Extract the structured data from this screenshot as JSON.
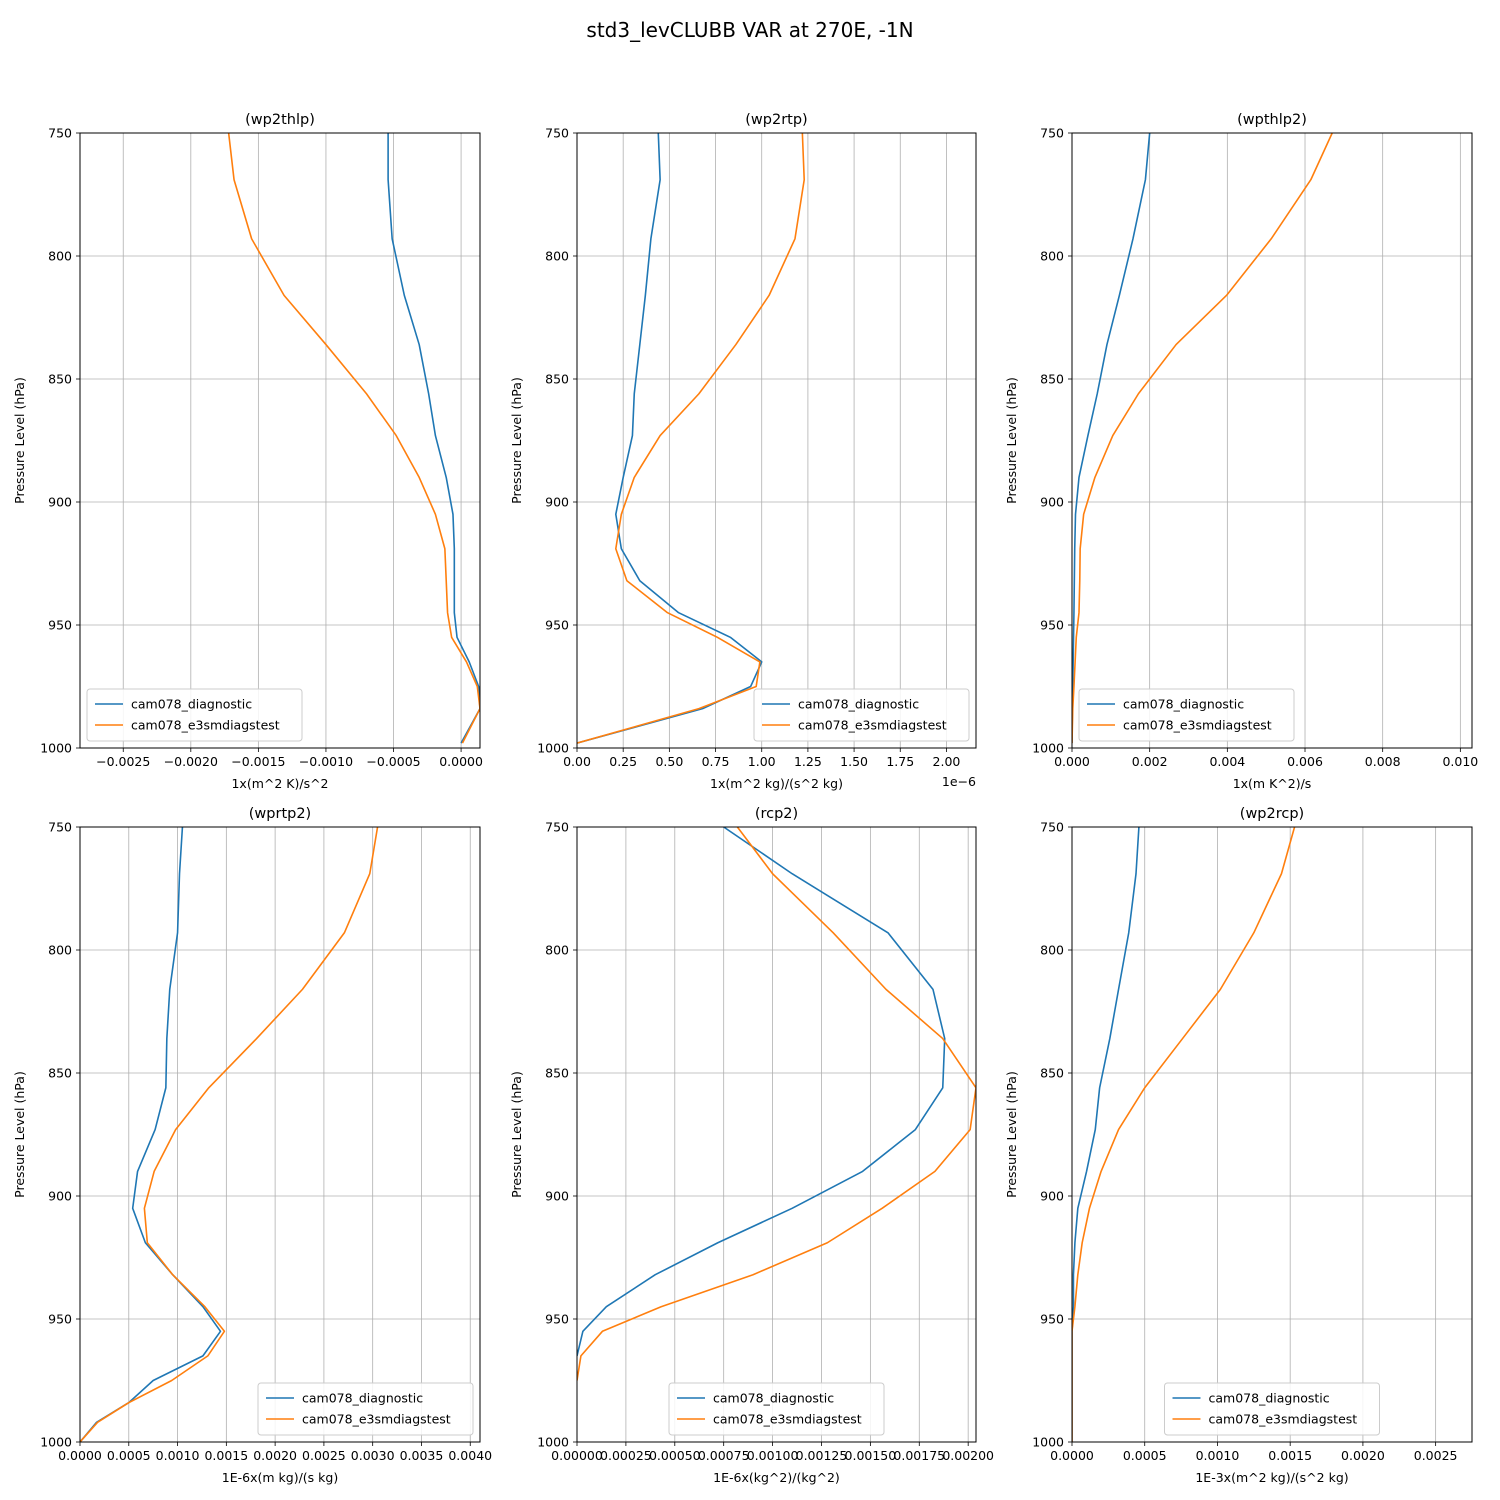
{
  "figure_title": "std3_levCLUBB VAR at 270E, -1N",
  "colors": {
    "series_1": "#1f77b4",
    "series_2": "#ff7f0e",
    "grid": "#b0b0b0"
  },
  "chart_data": [
    {
      "type": "line",
      "title": "(wp2thlp)",
      "xlabel": "1x(m^2 K)/s^2",
      "ylabel": "Pressure Level (hPa)",
      "xlim": [
        -0.00282,
        0.00014
      ],
      "ylim": [
        1000,
        750
      ],
      "xticks": [
        -0.0025,
        -0.002,
        -0.0015,
        -0.001,
        -0.0005,
        0.0
      ],
      "xtick_labels": [
        "−0.0025",
        "−0.0020",
        "−0.0015",
        "−0.0010",
        "−0.0005",
        "0.0000"
      ],
      "offset_text": "",
      "yticks": [
        750,
        800,
        850,
        900,
        950,
        1000
      ],
      "grid": true,
      "legend_position": "lower left",
      "series": [
        {
          "name": "cam078_diagnostic",
          "color": "#1f77b4",
          "points": [
            [
              -0.00054,
              750
            ],
            [
              -0.00054,
              769
            ],
            [
              -0.00051,
              793
            ],
            [
              -0.00042,
              816
            ],
            [
              -0.00031,
              836
            ],
            [
              -0.00024,
              856
            ],
            [
              -0.00019,
              873
            ],
            [
              -0.00011,
              890
            ],
            [
              -6e-05,
              905
            ],
            [
              -5e-05,
              919
            ],
            [
              -5e-05,
              932
            ],
            [
              -5e-05,
              945
            ],
            [
              -3e-05,
              955
            ],
            [
              6e-05,
              965
            ],
            [
              0.00013,
              975
            ],
            [
              0.00014,
              984
            ],
            [
              0.0,
              998
            ]
          ]
        },
        {
          "name": "cam078_e3smdiagstest",
          "color": "#ff7f0e",
          "points": [
            [
              -0.00172,
              750
            ],
            [
              -0.00168,
              769
            ],
            [
              -0.00155,
              793
            ],
            [
              -0.00131,
              816
            ],
            [
              -0.001,
              836
            ],
            [
              -0.0007,
              856
            ],
            [
              -0.00048,
              873
            ],
            [
              -0.00031,
              890
            ],
            [
              -0.00019,
              905
            ],
            [
              -0.00012,
              919
            ],
            [
              -0.00011,
              932
            ],
            [
              -0.0001,
              945
            ],
            [
              -7e-05,
              955
            ],
            [
              4e-05,
              965
            ],
            [
              0.00012,
              975
            ],
            [
              0.00014,
              984
            ],
            [
              1e-05,
              998
            ]
          ]
        }
      ]
    },
    {
      "type": "line",
      "title": "(wp2rtp)",
      "xlabel": "1x(m^2 kg)/(s^2 kg)",
      "ylabel": "Pressure Level (hPa)",
      "xlim": [
        0.0,
        2.16
      ],
      "ylim": [
        1000,
        750
      ],
      "xticks": [
        0.0,
        0.25,
        0.5,
        0.75,
        1.0,
        1.25,
        1.5,
        1.75,
        2.0
      ],
      "xtick_labels": [
        "0.00",
        "0.25",
        "0.50",
        "0.75",
        "1.00",
        "1.25",
        "1.50",
        "1.75",
        "2.00"
      ],
      "offset_text": "1e−6",
      "yticks": [
        750,
        800,
        850,
        900,
        950,
        1000
      ],
      "grid": true,
      "legend_position": "lower right",
      "series": [
        {
          "name": "cam078_diagnostic",
          "color": "#1f77b4",
          "points": [
            [
              0.44,
              750
            ],
            [
              0.45,
              769
            ],
            [
              0.4,
              793
            ],
            [
              0.37,
              816
            ],
            [
              0.34,
              836
            ],
            [
              0.31,
              856
            ],
            [
              0.3,
              873
            ],
            [
              0.25,
              890
            ],
            [
              0.21,
              905
            ],
            [
              0.24,
              919
            ],
            [
              0.34,
              932
            ],
            [
              0.55,
              945
            ],
            [
              0.83,
              955
            ],
            [
              1.0,
              965
            ],
            [
              0.94,
              975
            ],
            [
              0.68,
              984
            ],
            [
              0.0,
              998
            ]
          ]
        },
        {
          "name": "cam078_e3smdiagstest",
          "color": "#ff7f0e",
          "points": [
            [
              1.22,
              750
            ],
            [
              1.23,
              769
            ],
            [
              1.18,
              793
            ],
            [
              1.04,
              816
            ],
            [
              0.86,
              836
            ],
            [
              0.66,
              856
            ],
            [
              0.45,
              873
            ],
            [
              0.31,
              890
            ],
            [
              0.24,
              905
            ],
            [
              0.21,
              919
            ],
            [
              0.27,
              932
            ],
            [
              0.49,
              945
            ],
            [
              0.76,
              955
            ],
            [
              0.99,
              965
            ],
            [
              0.97,
              975
            ],
            [
              0.66,
              984
            ],
            [
              0.0,
              998
            ]
          ]
        }
      ]
    },
    {
      "type": "line",
      "title": "(wpthlp2)",
      "xlabel": "1x(m K^2)/s",
      "ylabel": "Pressure Level (hPa)",
      "xlim": [
        0.0,
        0.0103
      ],
      "ylim": [
        1000,
        750
      ],
      "xticks": [
        0.0,
        0.002,
        0.004,
        0.006,
        0.008,
        0.01
      ],
      "xtick_labels": [
        "0.000",
        "0.002",
        "0.004",
        "0.006",
        "0.008",
        "0.010"
      ],
      "offset_text": "",
      "yticks": [
        750,
        800,
        850,
        900,
        950,
        1000
      ],
      "grid": true,
      "legend_position": "lower left",
      "series": [
        {
          "name": "cam078_diagnostic",
          "color": "#1f77b4",
          "points": [
            [
              0.002,
              750
            ],
            [
              0.00189,
              769
            ],
            [
              0.00157,
              793
            ],
            [
              0.00122,
              816
            ],
            [
              0.0009,
              836
            ],
            [
              0.00065,
              856
            ],
            [
              0.00041,
              873
            ],
            [
              0.00018,
              890
            ],
            [
              9e-05,
              905
            ],
            [
              7e-05,
              919
            ],
            [
              6e-05,
              932
            ],
            [
              5e-05,
              945
            ],
            [
              4e-05,
              955
            ],
            [
              3e-05,
              965
            ],
            [
              2e-05,
              975
            ],
            [
              1e-05,
              984
            ],
            [
              0.0,
              998
            ]
          ]
        },
        {
          "name": "cam078_e3smdiagstest",
          "color": "#ff7f0e",
          "points": [
            [
              0.0067,
              750
            ],
            [
              0.00615,
              769
            ],
            [
              0.00513,
              793
            ],
            [
              0.00398,
              816
            ],
            [
              0.00268,
              836
            ],
            [
              0.00171,
              856
            ],
            [
              0.00105,
              873
            ],
            [
              0.00059,
              890
            ],
            [
              0.0003,
              905
            ],
            [
              0.00021,
              919
            ],
            [
              0.0002,
              932
            ],
            [
              0.00018,
              945
            ],
            [
              0.00011,
              955
            ],
            [
              8e-05,
              965
            ],
            [
              5e-05,
              975
            ],
            [
              2e-05,
              984
            ],
            [
              0.0,
              998
            ]
          ]
        }
      ]
    },
    {
      "type": "line",
      "title": "(wprtp2)",
      "xlabel": "1E-6x(m kg)/(s kg)",
      "ylabel": "Pressure Level (hPa)",
      "xlim": [
        0.0,
        0.0041
      ],
      "ylim": [
        1000,
        750
      ],
      "xticks": [
        0.0,
        0.0005,
        0.001,
        0.0015,
        0.002,
        0.0025,
        0.003,
        0.0035,
        0.004
      ],
      "xtick_labels": [
        "0.0000",
        "0.0005",
        "0.0010",
        "0.0015",
        "0.0020",
        "0.0025",
        "0.0030",
        "0.0035",
        "0.0040"
      ],
      "offset_text": "",
      "yticks": [
        750,
        800,
        850,
        900,
        950,
        1000
      ],
      "grid": true,
      "legend_position": "lower right",
      "series": [
        {
          "name": "cam078_diagnostic",
          "color": "#1f77b4",
          "points": [
            [
              0.00105,
              750
            ],
            [
              0.00102,
              769
            ],
            [
              0.001,
              793
            ],
            [
              0.00092,
              816
            ],
            [
              0.00089,
              836
            ],
            [
              0.00088,
              856
            ],
            [
              0.00077,
              873
            ],
            [
              0.00059,
              890
            ],
            [
              0.00054,
              905
            ],
            [
              0.00067,
              919
            ],
            [
              0.00095,
              932
            ],
            [
              0.00126,
              945
            ],
            [
              0.00144,
              955
            ],
            [
              0.00126,
              965
            ],
            [
              0.00075,
              975
            ],
            [
              0.0005,
              984
            ],
            [
              0.00017,
              992
            ],
            [
              0.0,
              1000
            ]
          ]
        },
        {
          "name": "cam078_e3smdiagstest",
          "color": "#ff7f0e",
          "points": [
            [
              0.00305,
              750
            ],
            [
              0.00297,
              769
            ],
            [
              0.00271,
              793
            ],
            [
              0.00228,
              816
            ],
            [
              0.00181,
              836
            ],
            [
              0.00132,
              856
            ],
            [
              0.00098,
              873
            ],
            [
              0.00076,
              890
            ],
            [
              0.00066,
              905
            ],
            [
              0.00069,
              919
            ],
            [
              0.00095,
              932
            ],
            [
              0.00128,
              945
            ],
            [
              0.00148,
              955
            ],
            [
              0.00131,
              965
            ],
            [
              0.00094,
              975
            ],
            [
              0.0005,
              984
            ],
            [
              0.00018,
              992
            ],
            [
              0.0,
              1000
            ]
          ]
        }
      ]
    },
    {
      "type": "line",
      "title": "(rcp2)",
      "xlabel": "1E-6x(kg^2)/(kg^2)",
      "ylabel": "Pressure Level (hPa)",
      "xlim": [
        0.0,
        0.00204
      ],
      "ylim": [
        1000,
        750
      ],
      "xticks": [
        0.0,
        0.00025,
        0.0005,
        0.00075,
        0.001,
        0.00125,
        0.0015,
        0.00175,
        0.002
      ],
      "xtick_labels": [
        "0.00000",
        "0.00025",
        "0.00050",
        "0.00075",
        "0.00100",
        "0.00125",
        "0.00150",
        "0.00175",
        "0.00200"
      ],
      "offset_text": "",
      "yticks": [
        750,
        800,
        850,
        900,
        950,
        1000
      ],
      "grid": true,
      "legend_position": "lower center",
      "series": [
        {
          "name": "cam078_diagnostic",
          "color": "#1f77b4",
          "points": [
            [
              0.00075,
              750
            ],
            [
              0.0011,
              769
            ],
            [
              0.00159,
              793
            ],
            [
              0.00182,
              816
            ],
            [
              0.00188,
              836
            ],
            [
              0.00187,
              856
            ],
            [
              0.00173,
              873
            ],
            [
              0.00146,
              890
            ],
            [
              0.0011,
              905
            ],
            [
              0.00072,
              919
            ],
            [
              0.0004,
              932
            ],
            [
              0.00015,
              945
            ],
            [
              3e-05,
              955
            ],
            [
              0.0,
              965
            ]
          ]
        },
        {
          "name": "cam078_e3smdiagstest",
          "color": "#ff7f0e",
          "points": [
            [
              0.00082,
              750
            ],
            [
              0.001,
              769
            ],
            [
              0.00131,
              793
            ],
            [
              0.00158,
              816
            ],
            [
              0.00187,
              836
            ],
            [
              0.00204,
              856
            ],
            [
              0.00201,
              873
            ],
            [
              0.00183,
              890
            ],
            [
              0.00156,
              905
            ],
            [
              0.00128,
              919
            ],
            [
              0.0009,
              932
            ],
            [
              0.00043,
              945
            ],
            [
              0.00013,
              955
            ],
            [
              2e-05,
              965
            ],
            [
              0.0,
              975
            ]
          ]
        }
      ]
    },
    {
      "type": "line",
      "title": "(wp2rcp)",
      "xlabel": "1E-3x(m^2 kg)/(s^2 kg)",
      "ylabel": "Pressure Level (hPa)",
      "xlim": [
        0.0,
        0.00275
      ],
      "ylim": [
        1000,
        750
      ],
      "xticks": [
        0.0,
        0.0005,
        0.001,
        0.0015,
        0.002,
        0.0025
      ],
      "xtick_labels": [
        "0.0000",
        "0.0005",
        "0.0010",
        "0.0015",
        "0.0020",
        "0.0025"
      ],
      "offset_text": "",
      "yticks": [
        750,
        800,
        850,
        900,
        950,
        1000
      ],
      "grid": true,
      "legend_position": "lower center",
      "series": [
        {
          "name": "cam078_diagnostic",
          "color": "#1f77b4",
          "points": [
            [
              0.00046,
              750
            ],
            [
              0.00044,
              769
            ],
            [
              0.00039,
              793
            ],
            [
              0.00032,
              816
            ],
            [
              0.00026,
              836
            ],
            [
              0.00019,
              856
            ],
            [
              0.00016,
              873
            ],
            [
              0.0001,
              890
            ],
            [
              4e-05,
              905
            ],
            [
              2e-05,
              919
            ],
            [
              1e-05,
              932
            ],
            [
              1e-05,
              945
            ],
            [
              0.0,
              955
            ],
            [
              0.0,
              1000
            ]
          ]
        },
        {
          "name": "cam078_e3smdiagstest",
          "color": "#ff7f0e",
          "points": [
            [
              0.00153,
              750
            ],
            [
              0.00144,
              769
            ],
            [
              0.00125,
              793
            ],
            [
              0.00102,
              816
            ],
            [
              0.00076,
              836
            ],
            [
              0.0005,
              856
            ],
            [
              0.00032,
              873
            ],
            [
              0.0002,
              890
            ],
            [
              0.00012,
              905
            ],
            [
              7e-05,
              919
            ],
            [
              4e-05,
              932
            ],
            [
              2e-05,
              945
            ],
            [
              0.0,
              955
            ],
            [
              0.0,
              1000
            ]
          ]
        }
      ]
    }
  ]
}
